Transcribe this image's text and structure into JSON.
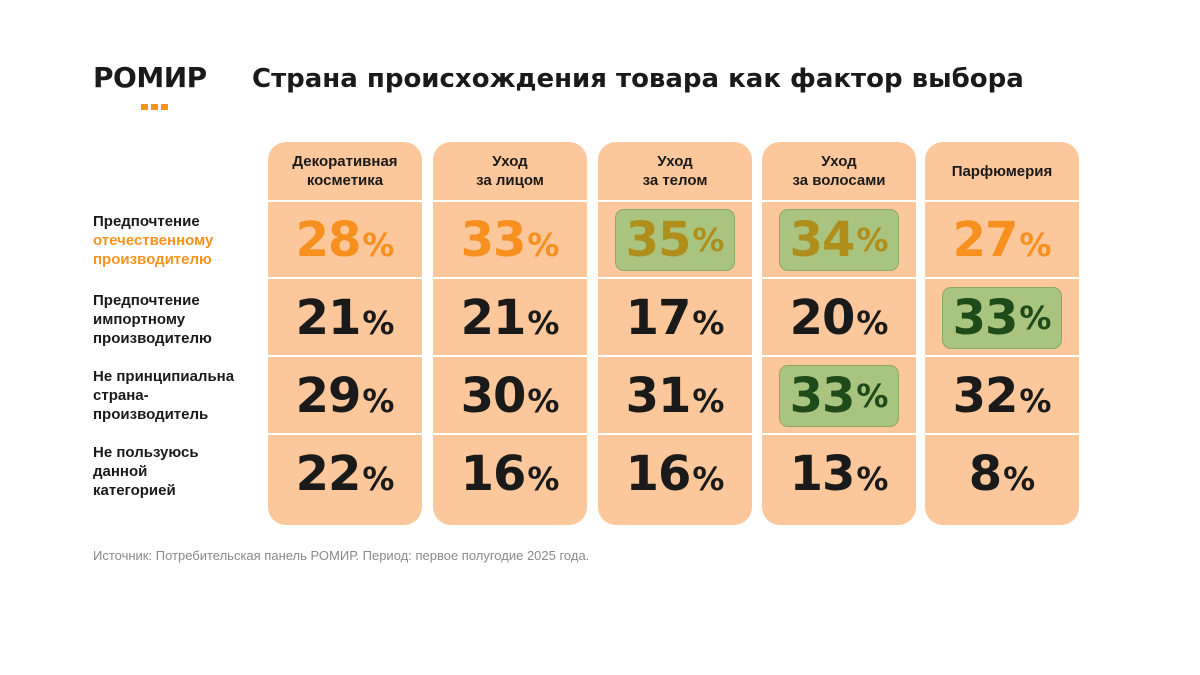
{
  "header": {
    "logo_text": "РОМИР",
    "title": "Страна происхождения товара как фактор выбора"
  },
  "colors": {
    "accent": "#f7941d",
    "column_fill": "#fcc79a",
    "highlight_fill": "#a9c47f",
    "text_dark": "#1a1a1a",
    "orange_value": "#f7901e",
    "olive_value": "#b08e1b",
    "green_value": "#1f4a1a"
  },
  "table": {
    "columns": [
      "Декоративная\nкосметика",
      "Уход\nза лицом",
      "Уход\nза телом",
      "Уход\nза волосами",
      "Парфюмерия"
    ],
    "rows": [
      {
        "lines": [
          "Предпочтение",
          "отечественному",
          "производителю"
        ]
      },
      {
        "lines": [
          "Предпочтение",
          "импортному",
          "производителю"
        ]
      },
      {
        "lines": [
          "Не принципиальна",
          "страна-",
          "производитель"
        ]
      },
      {
        "lines": [
          "Не пользуюсь",
          "данной",
          "категорией"
        ]
      }
    ],
    "values": [
      [
        {
          "num": "28",
          "pct": "%"
        },
        {
          "num": "33",
          "pct": "%"
        },
        {
          "num": "35",
          "pct": "%"
        },
        {
          "num": "34",
          "pct": "%"
        },
        {
          "num": "27",
          "pct": "%"
        }
      ],
      [
        {
          "num": "21",
          "pct": "%"
        },
        {
          "num": "21",
          "pct": "%"
        },
        {
          "num": "17",
          "pct": "%"
        },
        {
          "num": "20",
          "pct": "%"
        },
        {
          "num": "33",
          "pct": "%"
        }
      ],
      [
        {
          "num": "29",
          "pct": "%"
        },
        {
          "num": "30",
          "pct": "%"
        },
        {
          "num": "31",
          "pct": "%"
        },
        {
          "num": "33",
          "pct": "%"
        },
        {
          "num": "32",
          "pct": "%"
        }
      ],
      [
        {
          "num": "22",
          "pct": "%"
        },
        {
          "num": "16",
          "pct": "%"
        },
        {
          "num": "16",
          "pct": "%"
        },
        {
          "num": "13",
          "pct": "%"
        },
        {
          "num": "8",
          "pct": "%"
        }
      ]
    ],
    "highlights": [
      [
        0,
        2
      ],
      [
        0,
        3
      ],
      [
        1,
        4
      ],
      [
        2,
        3
      ]
    ]
  },
  "footer": {
    "source": "Источник: Потребительская панель РОМИР. Период: первое полугодие 2025 года."
  }
}
